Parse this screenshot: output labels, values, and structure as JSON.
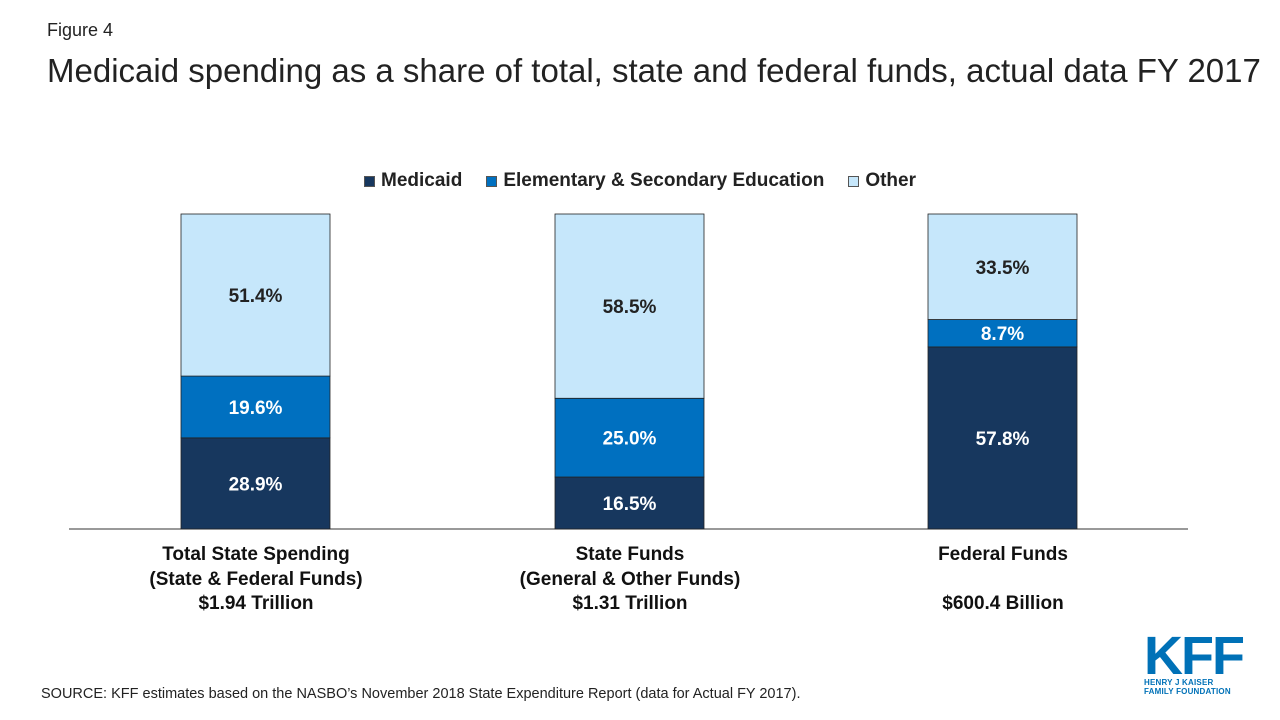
{
  "figure_label": "Figure 4",
  "title": "Medicaid spending as a share of total, state and federal funds, actual data FY 2017",
  "legend": [
    {
      "name": "Medicaid",
      "color": "#17375e"
    },
    {
      "name": "Elementary & Secondary Education",
      "color": "#0070c0"
    },
    {
      "name": "Other",
      "color": "#c6e7fb"
    }
  ],
  "categories": [
    {
      "line1": "Total State Spending",
      "line2": "(State & Federal Funds)",
      "line3": "$1.94 Trillion"
    },
    {
      "line1": "State Funds",
      "line2": "(General & Other Funds)",
      "line3": "$1.31 Trillion"
    },
    {
      "line1": "Federal Funds",
      "line2": "",
      "line3": "$600.4 Billion"
    }
  ],
  "chart_data": {
    "type": "bar",
    "stacked": true,
    "categories": [
      "Total State Spending (State & Federal Funds) $1.94 Trillion",
      "State Funds (General & Other Funds) $1.31 Trillion",
      "Federal Funds $600.4 Billion"
    ],
    "series": [
      {
        "name": "Medicaid",
        "values": [
          28.9,
          16.5,
          57.8
        ],
        "labels": [
          "28.9%",
          "16.5%",
          "57.8%"
        ],
        "color": "#17375e"
      },
      {
        "name": "Elementary & Secondary Education",
        "values": [
          19.6,
          25.0,
          8.7
        ],
        "labels": [
          "19.6%",
          "25.0%",
          "8.7%"
        ],
        "color": "#0070c0"
      },
      {
        "name": "Other",
        "values": [
          51.4,
          58.5,
          33.5
        ],
        "labels": [
          "51.4%",
          "58.5%",
          "33.5%"
        ],
        "color": "#c6e7fb"
      }
    ],
    "legend_position": "top-center"
  },
  "source": "SOURCE: KFF estimates based on the NASBO’s November 2018 State Expenditure Report (data for Actual FY 2017).",
  "logo": {
    "mark": "KFF",
    "line1": "HENRY J KAISER",
    "line2": "FAMILY FOUNDATION"
  }
}
